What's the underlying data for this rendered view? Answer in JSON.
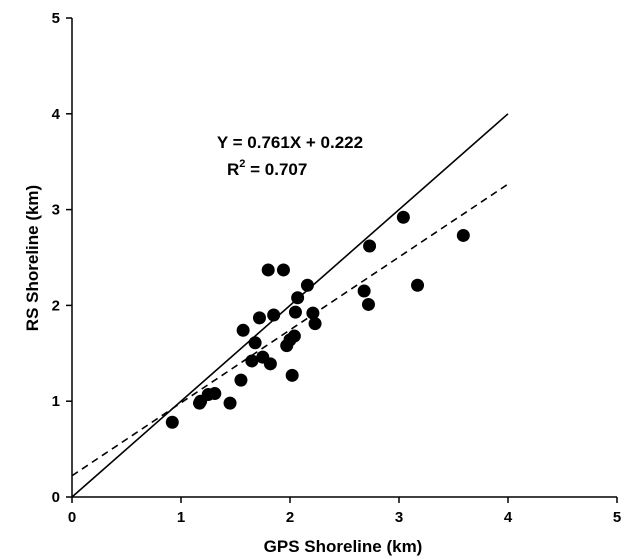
{
  "chart_data": {
    "type": "scatter",
    "title": "",
    "xlabel": "GPS Shoreline (km)",
    "ylabel": "RS Shoreline (km)",
    "xlim": [
      0,
      5
    ],
    "ylim": [
      0,
      5
    ],
    "xticks": [
      "0",
      "1",
      "2",
      "3",
      "4",
      "5"
    ],
    "yticks": [
      "0",
      "1",
      "2",
      "3",
      "4",
      "5"
    ],
    "grid": false,
    "legend": "none",
    "series": [
      {
        "points": [
          {
            "x": 0.92,
            "y": 0.78
          },
          {
            "x": 1.17,
            "y": 0.98
          },
          {
            "x": 1.18,
            "y": 1.0
          },
          {
            "x": 1.25,
            "y": 1.07
          },
          {
            "x": 1.31,
            "y": 1.08
          },
          {
            "x": 1.45,
            "y": 0.98
          },
          {
            "x": 1.55,
            "y": 1.22
          },
          {
            "x": 1.57,
            "y": 1.74
          },
          {
            "x": 1.65,
            "y": 1.42
          },
          {
            "x": 1.68,
            "y": 1.61
          },
          {
            "x": 1.72,
            "y": 1.87
          },
          {
            "x": 1.75,
            "y": 1.46
          },
          {
            "x": 1.8,
            "y": 2.37
          },
          {
            "x": 1.82,
            "y": 1.39
          },
          {
            "x": 1.85,
            "y": 1.9
          },
          {
            "x": 1.94,
            "y": 2.37
          },
          {
            "x": 1.97,
            "y": 1.58
          },
          {
            "x": 2.0,
            "y": 1.64
          },
          {
            "x": 2.02,
            "y": 1.27
          },
          {
            "x": 2.04,
            "y": 1.68
          },
          {
            "x": 2.05,
            "y": 1.93
          },
          {
            "x": 2.07,
            "y": 2.08
          },
          {
            "x": 2.16,
            "y": 2.21
          },
          {
            "x": 2.21,
            "y": 1.92
          },
          {
            "x": 2.23,
            "y": 1.81
          },
          {
            "x": 2.68,
            "y": 2.15
          },
          {
            "x": 2.72,
            "y": 2.01
          },
          {
            "x": 2.73,
            "y": 2.62
          },
          {
            "x": 3.04,
            "y": 2.92
          },
          {
            "x": 3.17,
            "y": 2.21
          },
          {
            "x": 3.59,
            "y": 2.73
          }
        ]
      }
    ],
    "lines": [
      {
        "style": "solid",
        "x": [
          0,
          4
        ],
        "y": [
          0,
          4
        ]
      },
      {
        "style": "dashed",
        "slope": 0.761,
        "intercept": 0.222,
        "x": [
          0,
          4
        ],
        "y": [
          0.222,
          3.266
        ]
      }
    ],
    "annotations": {
      "equation_line1": "Y = 0.761X + 0.222",
      "r2_base": "R",
      "r2_exp": "2",
      "r2_rest": " = 0.707"
    },
    "colors": {
      "marker": "#000000",
      "line": "#000000"
    }
  }
}
